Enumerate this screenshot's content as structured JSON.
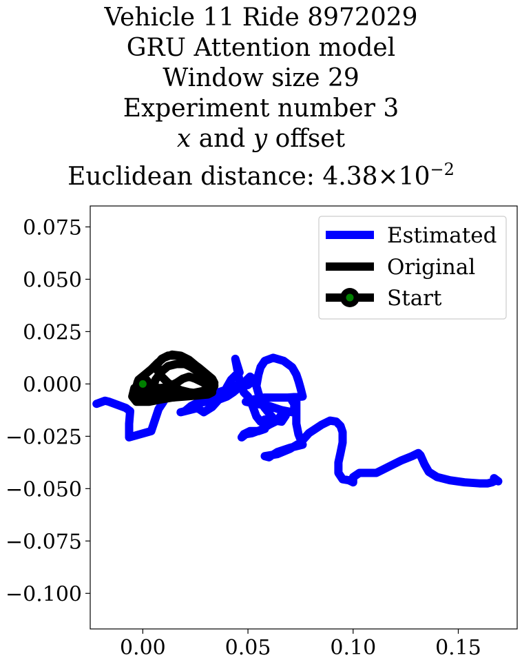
{
  "title": {
    "line1": "Vehicle 11 Ride 8972029",
    "line2": "GRU Attention model",
    "line3": "Window size 29",
    "line4": "Experiment number 3",
    "line5_x": "x",
    "line5_and": " and ",
    "line5_y": "y",
    "line5_rest": " offset",
    "line6_text": "Euclidean distance: ",
    "line6_mantissa": "4.38",
    "line6_times": "×",
    "line6_base": "10",
    "line6_exp": "−2"
  },
  "chart_data": {
    "type": "line",
    "title": "Vehicle 11 Ride 8972029 / GRU Attention model / Window size 29 / Experiment number 3 / x and y offset / Euclidean distance: 4.38×10^-2",
    "xlabel": "",
    "ylabel": "",
    "xlim": [
      -0.025,
      0.178
    ],
    "ylim": [
      -0.117,
      0.085
    ],
    "xticks": [
      0.0,
      0.05,
      0.1,
      0.15
    ],
    "xtick_labels": [
      "0.00",
      "0.05",
      "0.10",
      "0.15"
    ],
    "yticks": [
      0.075,
      0.05,
      0.025,
      0.0,
      -0.025,
      -0.05,
      -0.075,
      -0.1
    ],
    "ytick_labels": [
      "0.075",
      "0.050",
      "0.025",
      "0.000",
      "−0.025",
      "−0.050",
      "−0.075",
      "−0.100"
    ],
    "grid": false,
    "legend_position": "top-right",
    "series": [
      {
        "name": "Estimated",
        "color": "#0000ff",
        "points": [
          [
            -0.022,
            -0.0095
          ],
          [
            -0.018,
            -0.008
          ],
          [
            -0.016,
            -0.0085
          ],
          [
            -0.012,
            -0.01
          ],
          [
            -0.008,
            -0.0115
          ],
          [
            -0.006,
            -0.013
          ],
          [
            -0.0065,
            -0.019
          ],
          [
            -0.0065,
            -0.0255
          ],
          [
            0.004,
            -0.0225
          ],
          [
            0.0075,
            -0.012
          ],
          [
            0.0095,
            -0.009
          ],
          [
            0.0115,
            -0.0055
          ],
          [
            0.015,
            -0.0045
          ],
          [
            0.021,
            -0.0045
          ],
          [
            0.027,
            -0.0055
          ],
          [
            0.033,
            -0.005
          ],
          [
            0.039,
            -0.003
          ],
          [
            0.042,
            -0.001
          ],
          [
            0.046,
            -0.0005
          ],
          [
            0.049,
            0.0015
          ],
          [
            0.051,
            0.0035
          ],
          [
            0.053,
            0.002
          ],
          [
            0.05,
            -0.0005
          ],
          [
            0.046,
            -0.0015
          ],
          [
            0.043,
            -0.004
          ],
          [
            0.04,
            -0.006
          ],
          [
            0.036,
            -0.0075
          ],
          [
            0.031,
            -0.0085
          ],
          [
            0.026,
            -0.009
          ],
          [
            0.023,
            -0.0105
          ],
          [
            0.02,
            -0.013
          ],
          [
            0.018,
            -0.0135
          ],
          [
            0.022,
            -0.0125
          ],
          [
            0.026,
            -0.0115
          ],
          [
            0.029,
            -0.0135
          ],
          [
            0.033,
            -0.011
          ],
          [
            0.037,
            -0.0065
          ],
          [
            0.039,
            -0.0035
          ],
          [
            0.04,
            -0.0015
          ],
          [
            0.042,
            0.002
          ],
          [
            0.044,
            0.004
          ],
          [
            0.046,
            0.0055
          ],
          [
            0.044,
            0.012
          ],
          [
            0.046,
            0.0015
          ],
          [
            0.048,
            -0.004
          ],
          [
            0.05,
            -0.006
          ],
          [
            0.052,
            -0.01
          ],
          [
            0.054,
            -0.0155
          ],
          [
            0.056,
            -0.018
          ],
          [
            0.058,
            -0.017
          ],
          [
            0.059,
            -0.0185
          ],
          [
            0.058,
            -0.0215
          ],
          [
            0.055,
            -0.0225
          ],
          [
            0.051,
            -0.0225
          ],
          [
            0.048,
            -0.024
          ],
          [
            0.047,
            -0.0255
          ],
          [
            0.049,
            -0.024
          ],
          [
            0.052,
            -0.0235
          ],
          [
            0.056,
            -0.022
          ],
          [
            0.06,
            -0.0195
          ],
          [
            0.064,
            -0.0175
          ],
          [
            0.066,
            -0.0145
          ],
          [
            0.066,
            -0.0125
          ],
          [
            0.068,
            -0.013
          ],
          [
            0.068,
            -0.015
          ],
          [
            0.066,
            -0.018
          ],
          [
            0.063,
            -0.0175
          ],
          [
            0.06,
            -0.014
          ],
          [
            0.058,
            -0.0115
          ],
          [
            0.057,
            -0.01
          ],
          [
            0.055,
            -0.0045
          ],
          [
            0.054,
            -0.001
          ],
          [
            0.055,
            0.0045
          ],
          [
            0.056,
            0.008
          ],
          [
            0.058,
            0.011
          ],
          [
            0.062,
            0.0125
          ],
          [
            0.067,
            0.011
          ],
          [
            0.071,
            0.008
          ],
          [
            0.073,
            0.0045
          ],
          [
            0.074,
            0.0015
          ],
          [
            0.075,
            -0.002
          ],
          [
            0.076,
            -0.006
          ],
          [
            0.069,
            -0.0065
          ],
          [
            0.063,
            -0.0065
          ],
          [
            0.058,
            -0.0065
          ],
          [
            0.052,
            -0.0075
          ],
          [
            0.049,
            -0.0085
          ],
          [
            0.054,
            -0.0095
          ],
          [
            0.06,
            -0.0105
          ],
          [
            0.066,
            -0.0125
          ],
          [
            0.071,
            -0.0135
          ],
          [
            0.072,
            -0.012
          ],
          [
            0.072,
            -0.0095
          ],
          [
            0.071,
            -0.008
          ],
          [
            0.073,
            -0.008
          ],
          [
            0.073,
            -0.019
          ],
          [
            0.074,
            -0.024
          ],
          [
            0.076,
            -0.029
          ],
          [
            0.07,
            -0.0305
          ],
          [
            0.064,
            -0.0325
          ],
          [
            0.06,
            -0.035
          ],
          [
            0.058,
            -0.0345
          ],
          [
            0.064,
            -0.0335
          ],
          [
            0.07,
            -0.031
          ],
          [
            0.075,
            -0.028
          ],
          [
            0.079,
            -0.0235
          ],
          [
            0.085,
            -0.0195
          ],
          [
            0.089,
            -0.0175
          ],
          [
            0.092,
            -0.018
          ],
          [
            0.094,
            -0.02
          ],
          [
            0.095,
            -0.023
          ],
          [
            0.095,
            -0.028
          ],
          [
            0.094,
            -0.033
          ],
          [
            0.093,
            -0.0375
          ],
          [
            0.093,
            -0.0425
          ],
          [
            0.095,
            -0.0455
          ],
          [
            0.098,
            -0.046
          ],
          [
            0.1,
            -0.047
          ],
          [
            0.1,
            -0.0445
          ],
          [
            0.103,
            -0.0425
          ],
          [
            0.107,
            -0.0425
          ],
          [
            0.111,
            -0.0425
          ],
          [
            0.114,
            -0.041
          ],
          [
            0.118,
            -0.039
          ],
          [
            0.123,
            -0.0365
          ],
          [
            0.128,
            -0.0345
          ],
          [
            0.131,
            -0.033
          ],
          [
            0.132,
            -0.034
          ],
          [
            0.134,
            -0.0385
          ],
          [
            0.136,
            -0.042
          ],
          [
            0.14,
            -0.0445
          ],
          [
            0.146,
            -0.046
          ],
          [
            0.153,
            -0.047
          ],
          [
            0.16,
            -0.0475
          ],
          [
            0.164,
            -0.0475
          ],
          [
            0.166,
            -0.047
          ],
          [
            0.168,
            -0.046
          ],
          [
            0.167,
            -0.045
          ],
          [
            0.169,
            -0.0465
          ]
        ]
      },
      {
        "name": "Original",
        "color": "#000000",
        "points": [
          [
            0.0,
            0.0
          ],
          [
            -0.004,
            -0.002
          ],
          [
            -0.005,
            -0.006
          ],
          [
            -0.003,
            -0.0085
          ],
          [
            0.003,
            -0.0085
          ],
          [
            0.008,
            -0.0075
          ],
          [
            0.014,
            -0.0065
          ],
          [
            0.02,
            -0.006
          ],
          [
            0.026,
            -0.0055
          ],
          [
            0.031,
            -0.005
          ],
          [
            0.033,
            -0.004
          ],
          [
            0.033,
            -0.002
          ],
          [
            0.031,
            -0.0005
          ],
          [
            0.028,
            0.001
          ],
          [
            0.025,
            0.0025
          ],
          [
            0.022,
            0.0035
          ],
          [
            0.019,
            0.0025
          ],
          [
            0.016,
            0.0005
          ],
          [
            0.012,
            -0.0015
          ],
          [
            0.008,
            -0.002
          ],
          [
            0.005,
            -0.0015
          ],
          [
            0.006,
            0.002
          ],
          [
            0.009,
            0.006
          ],
          [
            0.012,
            0.0085
          ],
          [
            0.016,
            0.0095
          ],
          [
            0.02,
            0.0095
          ],
          [
            0.023,
            0.008
          ],
          [
            0.026,
            0.006
          ],
          [
            0.029,
            0.004
          ],
          [
            0.032,
            0.002
          ],
          [
            0.034,
            -0.0005
          ],
          [
            0.033,
            -0.003
          ],
          [
            0.03,
            -0.0045
          ],
          [
            0.026,
            -0.0045
          ],
          [
            0.022,
            -0.004
          ],
          [
            0.018,
            -0.003
          ],
          [
            0.015,
            -0.0015
          ],
          [
            0.012,
            0.0005
          ],
          [
            0.009,
            0.0035
          ],
          [
            0.007,
            0.0065
          ],
          [
            0.007,
            0.0095
          ],
          [
            0.009,
            0.012
          ],
          [
            0.012,
            0.0135
          ],
          [
            0.016,
            0.0135
          ],
          [
            0.02,
            0.0125
          ],
          [
            0.023,
            0.0105
          ],
          [
            0.027,
            0.0075
          ],
          [
            0.03,
            0.005
          ],
          [
            0.033,
            0.0025
          ],
          [
            0.034,
            0.0005
          ],
          [
            0.032,
            -0.002
          ],
          [
            0.028,
            -0.0035
          ],
          [
            0.023,
            -0.0045
          ],
          [
            0.018,
            -0.0055
          ],
          [
            0.013,
            -0.0065
          ],
          [
            0.008,
            -0.0065
          ],
          [
            0.003,
            -0.006
          ],
          [
            -0.001,
            -0.0055
          ],
          [
            -0.003,
            -0.004
          ],
          [
            -0.003,
            -0.001
          ],
          [
            -0.002,
            0.002
          ],
          [
            0.001,
            0.0045
          ],
          [
            0.004,
            0.007
          ],
          [
            0.007,
            0.01
          ],
          [
            0.01,
            0.0125
          ],
          [
            0.014,
            0.014
          ],
          [
            0.018,
            0.0135
          ],
          [
            0.022,
            0.0115
          ],
          [
            0.025,
            0.009
          ],
          [
            0.028,
            0.0065
          ],
          [
            0.031,
            0.004
          ],
          [
            0.033,
            0.0015
          ],
          [
            0.034,
            -0.001
          ],
          [
            0.032,
            -0.0035
          ],
          [
            0.027,
            -0.0045
          ],
          [
            0.021,
            -0.0045
          ],
          [
            0.015,
            -0.004
          ],
          [
            0.009,
            -0.0035
          ],
          [
            0.004,
            -0.003
          ],
          [
            0.001,
            -0.002
          ],
          [
            0.0,
            0.0
          ]
        ]
      },
      {
        "name": "Start",
        "color": "#000000",
        "marker_face_color": "#008000",
        "points": [
          [
            0.0,
            0.0
          ]
        ]
      }
    ]
  }
}
